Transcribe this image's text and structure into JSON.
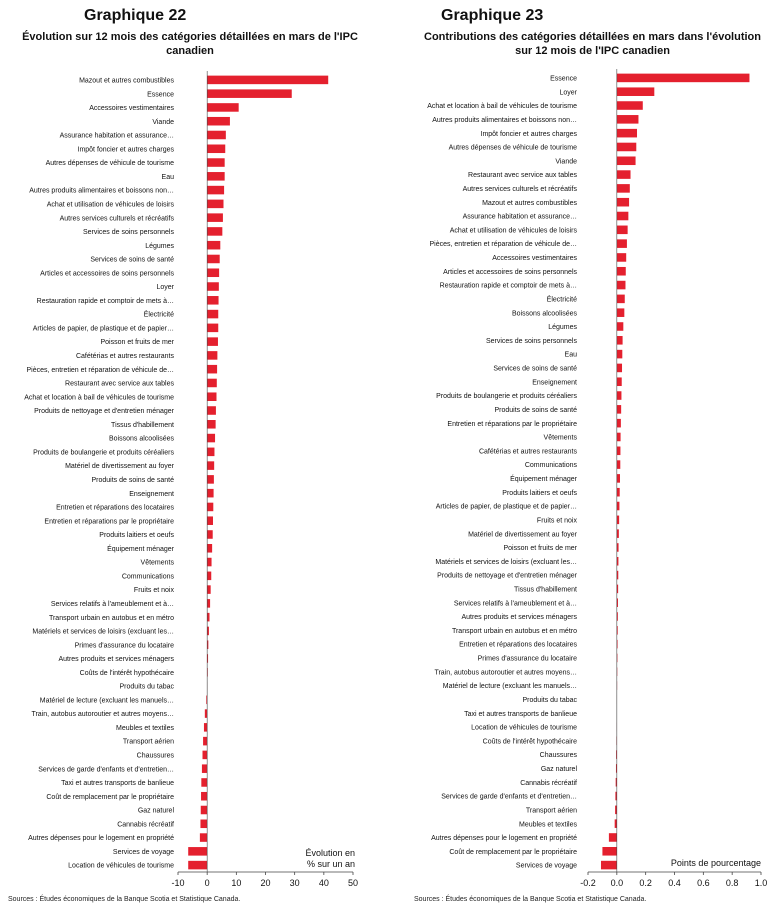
{
  "charts": [
    {
      "title": "Graphique 22",
      "subtitle": "Évolution sur 12 mois des catégories détaillées en mars de l'IPC canadien",
      "unit_label_line1": "Évolution en",
      "unit_label_line2": "% sur un an",
      "source": "Sources : Études économiques de la Banque Scotia et Statistique Canada."
    },
    {
      "title": "Graphique 23",
      "subtitle": "Contributions des catégories détaillées en mars dans l'évolution sur 12 mois de l'IPC canadien",
      "unit_label_line1": "Points de pourcentage",
      "unit_label_line2": "",
      "source": "Sources : Études économiques de la Banque Scotia et Statistique Canada."
    }
  ],
  "colors": {
    "bar": "#e4202e",
    "axis": "#444444",
    "text": "#111111"
  },
  "chart_data": [
    {
      "type": "bar",
      "orientation": "horizontal",
      "title": "Graphique 22",
      "subtitle": "Évolution sur 12 mois des catégories détaillées en mars de l'IPC canadien",
      "xlabel": "Évolution en % sur un an",
      "xlim": [
        -10,
        50
      ],
      "xticks": [
        -10,
        0,
        10,
        20,
        30,
        40,
        50
      ],
      "grid": false,
      "categories": [
        "Mazout et autres combustibles",
        "Essence",
        "Accessoires vestimentaires",
        "Viande",
        "Assurance habitation et assurance…",
        "Impôt foncier et autres charges",
        "Autres dépenses de véhicule de tourisme",
        "Eau",
        "Autres produits alimentaires et boissons non…",
        "Achat et utilisation de véhicules de loisirs",
        "Autres services culturels et récréatifs",
        "Services de soins personnels",
        "Légumes",
        "Services de soins de santé",
        "Articles et accessoires de soins personnels",
        "Loyer",
        "Restauration rapide et comptoir de mets à…",
        "Électricité",
        "Articles de papier, de plastique et de papier…",
        "Poisson et fruits de mer",
        "Cafétérias et autres restaurants",
        "Pièces, entretien et réparation de véhicule de…",
        "Restaurant avec service aux tables",
        "Achat et location à bail de véhicules de tourisme",
        "Produits de nettoyage et d'entretien ménager",
        "Tissus d'habillement",
        "Boissons alcoolisées",
        "Produits de boulangerie et produits céréaliers",
        "Matériel de divertissement au foyer",
        "Produits de soins de santé",
        "Enseignement",
        "Entretien et réparations des locataires",
        "Entretien et réparations par le propriétaire",
        "Produits laitiers et oeufs",
        "Équipement ménager",
        "Vêtements",
        "Communications",
        "Fruits et noix",
        "Services relatifs à l'ameublement et à…",
        "Transport urbain en autobus et en métro",
        "Matériels et services de loisirs (excluant les…",
        "Primes d'assurance du locataire",
        "Autres produits et services ménagers",
        "Coûts de l'intérêt hypothécaire",
        "Produits du tabac",
        "Matériel de lecture (excluant les manuels…",
        "Train, autobus autoroutier et autres moyens…",
        "Meubles et textiles",
        "Transport aérien",
        "Chaussures",
        "Services de garde d'enfants et d'entretien…",
        "Taxi et autres transports de banlieue",
        "Coût de remplacement par le propriétaire",
        "Gaz naturel",
        "Cannabis récréatif",
        "Autres dépenses pour le logement en propriété",
        "Services de voyage",
        "Location de véhicules de tourisme"
      ],
      "values": [
        41.5,
        29.0,
        10.8,
        7.8,
        6.4,
        6.2,
        6.0,
        6.0,
        5.8,
        5.6,
        5.4,
        5.2,
        4.5,
        4.3,
        4.1,
        4.0,
        3.9,
        3.8,
        3.8,
        3.7,
        3.5,
        3.4,
        3.3,
        3.2,
        3.0,
        2.9,
        2.7,
        2.5,
        2.4,
        2.3,
        2.2,
        2.1,
        2.0,
        1.9,
        1.7,
        1.5,
        1.4,
        1.2,
        1.0,
        0.8,
        0.6,
        0.4,
        0.3,
        0.2,
        0.1,
        -0.3,
        -0.8,
        -1.1,
        -1.4,
        -1.6,
        -1.8,
        -2.0,
        -2.1,
        -2.2,
        -2.3,
        -2.5,
        -6.5,
        -6.5
      ]
    },
    {
      "type": "bar",
      "orientation": "horizontal",
      "title": "Graphique 23",
      "subtitle": "Contributions des catégories détaillées en mars dans l'évolution sur 12 mois de l'IPC canadien",
      "xlabel": "Points de pourcentage",
      "xlim": [
        -0.2,
        1.0
      ],
      "xticks": [
        -0.2,
        0.0,
        0.2,
        0.4,
        0.6,
        0.8,
        1.0
      ],
      "grid": false,
      "categories": [
        "Essence",
        "Loyer",
        "Achat et location à bail de véhicules de tourisme",
        "Autres produits alimentaires et boissons non…",
        "Impôt foncier et autres charges",
        "Autres dépenses de véhicule de tourisme",
        "Viande",
        "Restaurant avec service aux tables",
        "Autres services culturels et récréatifs",
        "Mazout et autres combustibles",
        "Assurance habitation et assurance…",
        "Achat et utilisation de véhicules de loisirs",
        "Pièces, entretien et réparation de véhicule de…",
        "Accessoires vestimentaires",
        "Articles et accessoires de soins personnels",
        "Restauration rapide et comptoir de mets à…",
        "Électricité",
        "Boissons alcoolisées",
        "Légumes",
        "Services de soins personnels",
        "Eau",
        "Services de soins de santé",
        "Enseignement",
        "Produits de boulangerie et produits céréaliers",
        "Produits de soins de santé",
        "Entretien et réparations par le propriétaire",
        "Vêtements",
        "Cafétérias et autres restaurants",
        "Communications",
        "Équipement ménager",
        "Produits laitiers et oeufs",
        "Articles de papier, de plastique et de papier…",
        "Fruits et noix",
        "Matériel de divertissement au foyer",
        "Poisson et fruits de mer",
        "Matériels et services de loisirs (excluant les…",
        "Produits de nettoyage et d'entretien ménager",
        "Tissus d'habillement",
        "Services relatifs à l'ameublement et à…",
        "Autres produits et services ménagers",
        "Transport urbain en autobus et en métro",
        "Entretien et réparations des locataires",
        "Primes d'assurance du locataire",
        "Train, autobus autoroutier et autres moyens…",
        "Matériel de lecture (excluant les manuels…",
        "Produits du tabac",
        "Taxi et autres transports de banlieue",
        "Location de véhicules de tourisme",
        "Coûts de l'intérêt hypothécaire",
        "Chaussures",
        "Gaz naturel",
        "Cannabis récréatif",
        "Services de garde d'enfants et d'entretien…",
        "Transport aérien",
        "Meubles et textiles",
        "Autres dépenses pour le logement en propriété",
        "Coût de remplacement par le propriétaire",
        "Services de voyage"
      ],
      "values": [
        0.92,
        0.26,
        0.18,
        0.15,
        0.14,
        0.135,
        0.13,
        0.095,
        0.09,
        0.085,
        0.08,
        0.075,
        0.07,
        0.065,
        0.062,
        0.06,
        0.055,
        0.052,
        0.045,
        0.04,
        0.038,
        0.036,
        0.034,
        0.032,
        0.03,
        0.028,
        0.026,
        0.025,
        0.024,
        0.022,
        0.02,
        0.018,
        0.016,
        0.014,
        0.012,
        0.011,
        0.01,
        0.009,
        0.008,
        0.007,
        0.006,
        0.005,
        0.004,
        0.003,
        0.002,
        0.001,
        0.0,
        -0.002,
        -0.003,
        -0.005,
        -0.006,
        -0.008,
        -0.01,
        -0.012,
        -0.015,
        -0.055,
        -0.1,
        -0.11
      ]
    }
  ]
}
